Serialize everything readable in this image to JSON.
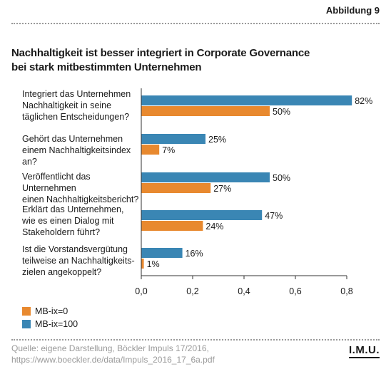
{
  "header": {
    "figure_label": "Abbildung 9",
    "title_line1": "Nachhaltigkeit ist besser integriert in Corporate Governance",
    "title_line2": "bei stark mitbestimmten Unternehmen"
  },
  "colors": {
    "orange": "#e8892f",
    "blue": "#3a86b4",
    "axis": "#333333"
  },
  "chart_data": {
    "type": "bar",
    "orientation": "horizontal",
    "categories": [
      "Integriert das Unternehmen\nNachhaltigkeit in seine\ntäglichen Entscheidungen?",
      "Gehört das Unternehmen\neinem Nachhaltigkeitsindex an?",
      "Veröffentlicht das Unternehmen\neinen Nachhaltigkeitsbericht?",
      "Erklärt das Unternehmen,\nwie es einen Dialog mit\nStakeholdern führt?",
      "Ist die Vorstandsvergütung\nteilweise an Nachhaltigkeits-\nzielen angekoppelt?"
    ],
    "series": [
      {
        "name": "MB-ix=100",
        "color": "#3a86b4",
        "values": [
          0.82,
          0.25,
          0.5,
          0.47,
          0.16
        ],
        "labels": [
          "82%",
          "25%",
          "50%",
          "47%",
          "16%"
        ]
      },
      {
        "name": "MB-ix=0",
        "color": "#e8892f",
        "values": [
          0.5,
          0.07,
          0.27,
          0.24,
          0.01
        ],
        "labels": [
          "50%",
          "7%",
          "27%",
          "24%",
          "1%"
        ]
      }
    ],
    "x_ticks": [
      0.0,
      0.2,
      0.4,
      0.6,
      0.8
    ],
    "x_tick_labels": [
      "0,0",
      "0,2",
      "0,4",
      "0,6",
      "0,8"
    ],
    "xlim": [
      0,
      0.82
    ],
    "grid": false,
    "legend_position": "bottom-left"
  },
  "legend": {
    "items": [
      "MB-ix=0",
      "MB-ix=100"
    ]
  },
  "footer": {
    "source_line1": "Quelle: eigene Darstellung, Böckler Impuls 17/2016,",
    "source_line2": "https://www.boeckler.de/data/Impuls_2016_17_6a.pdf",
    "logo": "I.M.U."
  }
}
